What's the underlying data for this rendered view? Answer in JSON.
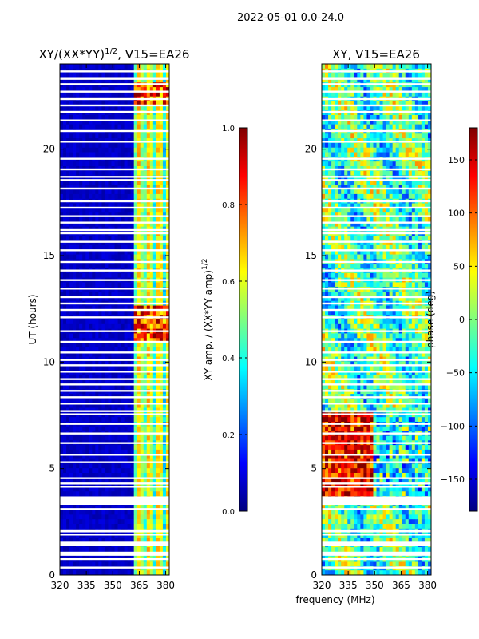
{
  "figure_title": "2022-05-01 0.0-24.0",
  "xlabel_shared": "frequency (MHz)",
  "chart_data": [
    {
      "type": "heatmap",
      "title": "XY/(XX*YY)^{1/2}, V15=EA26",
      "title_main": "XY/(XX*YY)",
      "title_sup": "1/2",
      "title_rest": ", V15=EA26",
      "ylabel": "UT (hours)",
      "xlim": [
        320,
        382
      ],
      "ylim": [
        0,
        24
      ],
      "xticks": [
        320,
        335,
        350,
        365,
        380
      ],
      "xtick_labels": [
        "320",
        "335",
        "350",
        "365",
        "380"
      ],
      "yticks": [
        0,
        5,
        10,
        15,
        20
      ],
      "ytick_labels": [
        "0",
        "5",
        "10",
        "15",
        "20"
      ],
      "colorbar": {
        "label": "XY amp. / (XX*YY amp)^{1/2}",
        "label_main": "XY amp. / (XX*YY amp)",
        "label_sup": "1/2",
        "range": [
          0.0,
          1.0
        ],
        "ticks": [
          0.0,
          0.2,
          0.4,
          0.6,
          0.8,
          1.0
        ],
        "tick_labels": [
          "0.0",
          "0.2",
          "0.4",
          "0.6",
          "0.8",
          "1.0"
        ],
        "colormap": "jet"
      }
    },
    {
      "type": "heatmap",
      "title": "XY, V15=EA26",
      "ylabel": "",
      "xlim": [
        320,
        382
      ],
      "ylim": [
        0,
        24
      ],
      "xticks": [
        320,
        335,
        350,
        365,
        380
      ],
      "xtick_labels": [
        "320",
        "335",
        "350",
        "365",
        "380"
      ],
      "yticks": [
        0,
        5,
        10,
        15,
        20
      ],
      "ytick_labels": [
        "0",
        "5",
        "10",
        "15",
        "20"
      ],
      "colorbar": {
        "label": "phase (deg)",
        "range": [
          -180,
          180
        ],
        "ticks": [
          -150,
          -100,
          -50,
          0,
          50,
          100,
          150
        ],
        "tick_labels": [
          "−150",
          "−100",
          "−50",
          "0",
          "50",
          "100",
          "150"
        ],
        "colormap": "jet"
      }
    }
  ],
  "flagged_ut_hours": [
    0.35,
    0.75,
    0.95,
    1.05,
    1.45,
    1.5,
    1.55,
    1.9,
    2.05,
    2.1,
    3.1,
    3.35,
    3.45,
    3.55,
    3.65,
    4.15,
    4.3,
    4.55,
    5.3,
    5.65,
    6.2,
    6.65,
    7.1,
    7.55,
    7.7,
    8.05,
    8.35,
    8.65,
    8.95,
    9.2,
    9.55,
    9.85,
    10.1,
    10.45,
    10.95,
    11.45,
    12.1,
    12.45,
    12.75,
    13.05,
    13.45,
    13.85,
    14.3,
    14.7,
    15.25,
    15.65,
    16.05,
    16.2,
    16.55,
    16.85,
    17.25,
    17.55,
    18.15,
    18.55,
    18.7,
    19.05,
    19.55,
    20.35,
    20.85,
    21.35,
    21.75,
    22.05,
    22.35,
    22.7,
    23.05,
    23.3,
    23.65
  ]
}
